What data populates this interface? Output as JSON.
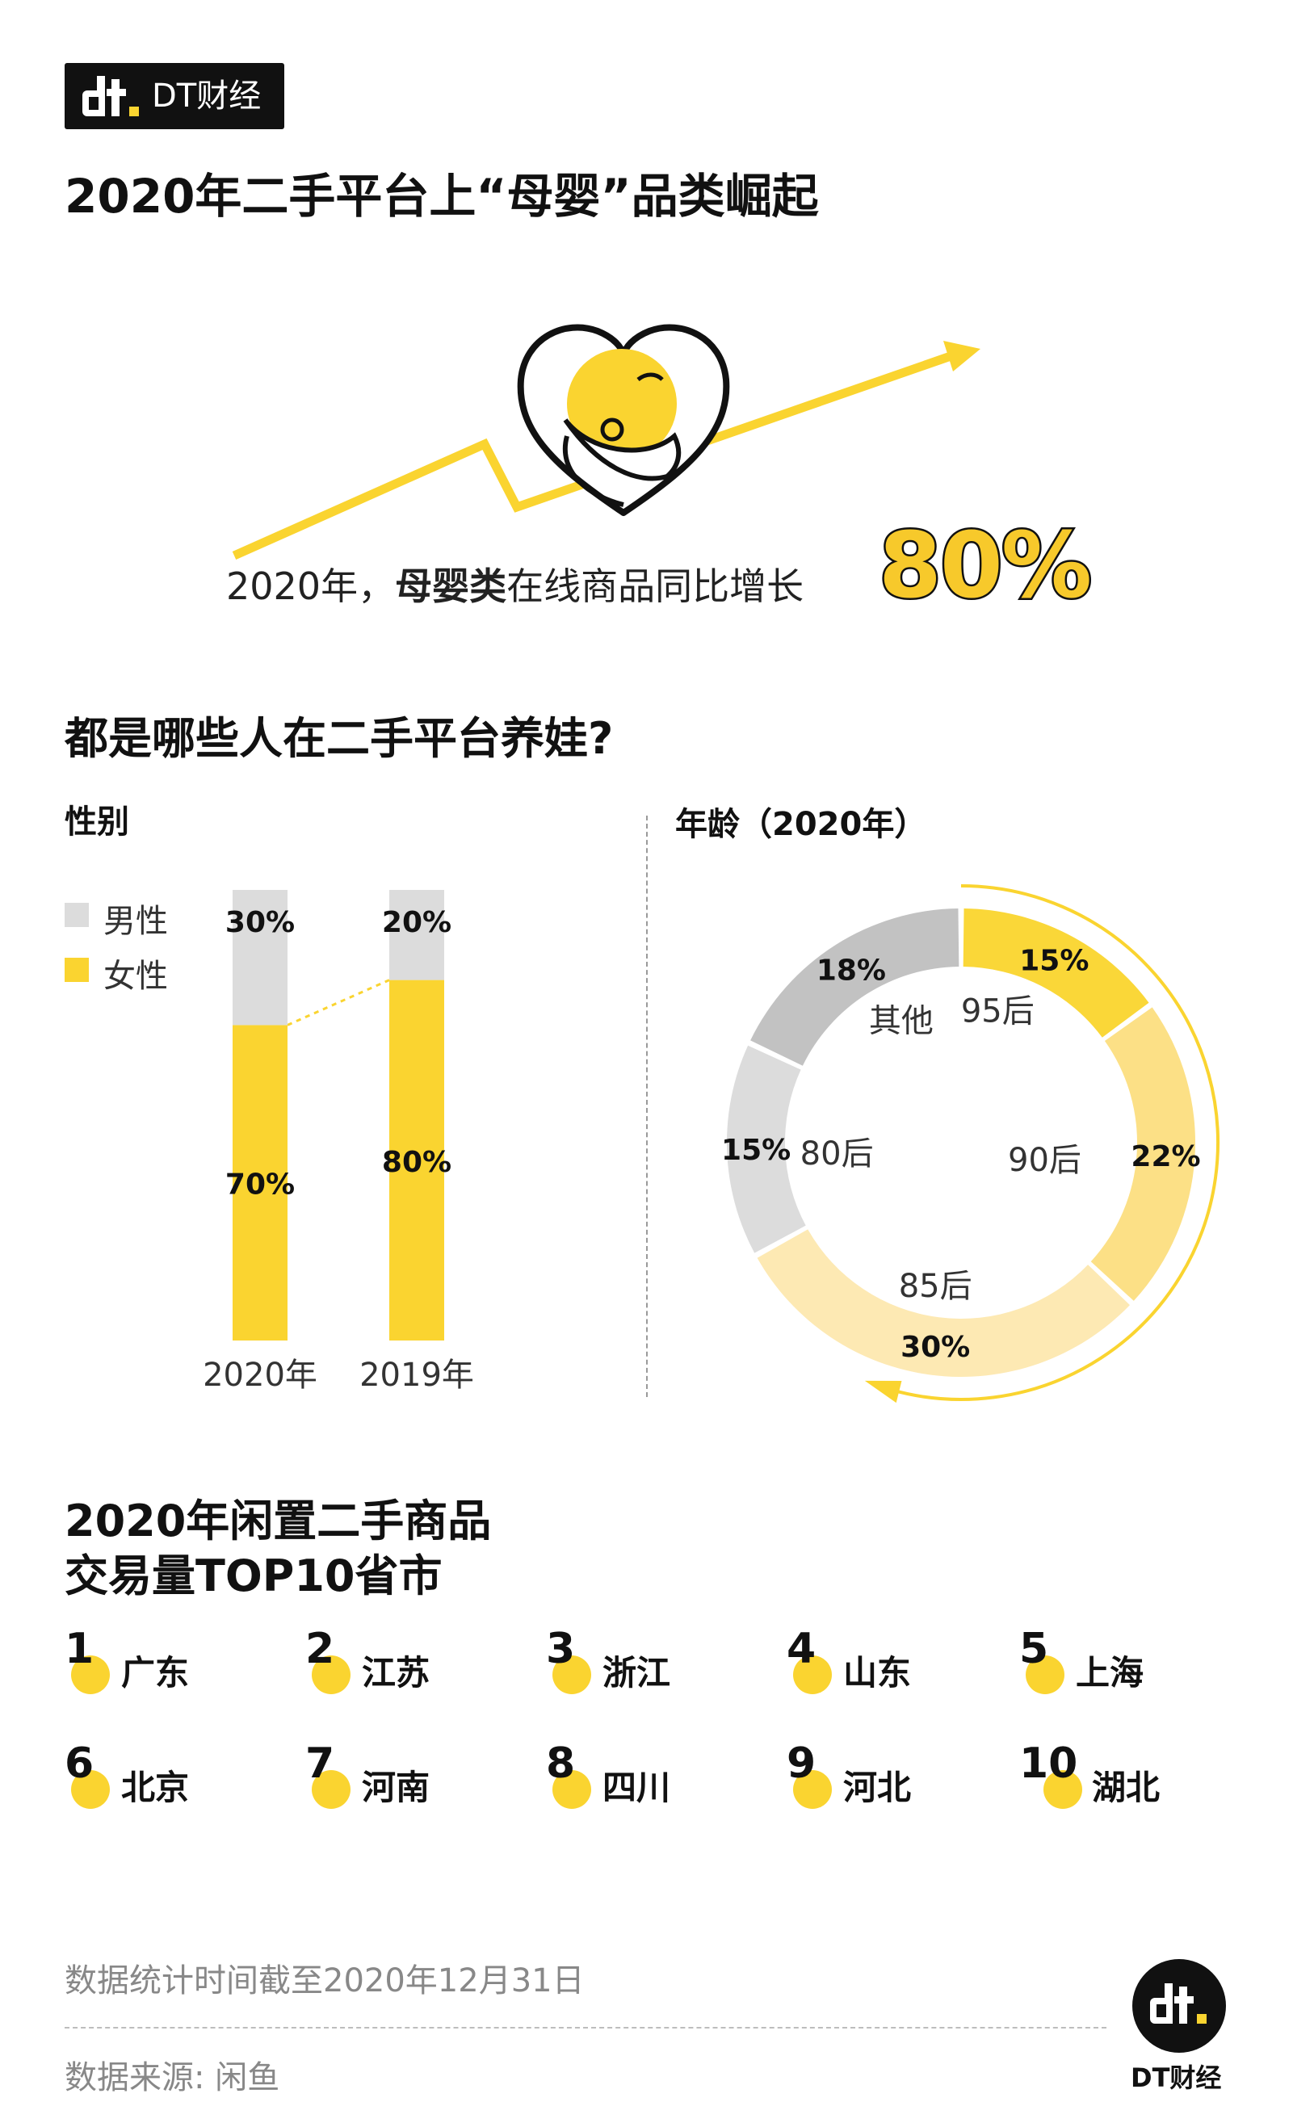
{
  "brand": {
    "name": "DT财经"
  },
  "title": "2020年二手平台上“母婴”品类崛起",
  "hero": {
    "caption_prefix": "2020年，",
    "caption_bold": "母婴类",
    "caption_suffix": "在线商品同比增长",
    "growth": "80%"
  },
  "section_title": "都是哪些人在二手平台养娃?",
  "colors": {
    "accent": "#fad430",
    "male_gray": "#dcdcdc",
    "age_95": "#fad738",
    "age_90": "#fce086",
    "age_85": "#fde9b3",
    "age_80": "#dcdcdc",
    "age_other": "#c2c2c2"
  },
  "gender": {
    "title": "性别",
    "legend": [
      {
        "label": "男性",
        "color": "#dcdcdc"
      },
      {
        "label": "女性",
        "color": "#fad430"
      }
    ]
  },
  "age": {
    "title": "年龄（2020年）"
  },
  "chart_data": [
    {
      "type": "bar",
      "stacked": true,
      "title": "性别",
      "categories": [
        "2020年",
        "2019年"
      ],
      "series": [
        {
          "name": "女性",
          "values": [
            70,
            80
          ],
          "labels": [
            "70%",
            "80%"
          ],
          "color": "#fad430"
        },
        {
          "name": "男性",
          "values": [
            30,
            20
          ],
          "labels": [
            "30%",
            "20%"
          ],
          "color": "#dcdcdc"
        }
      ],
      "ylim": [
        0,
        100
      ]
    },
    {
      "type": "pie",
      "donut": true,
      "title": "年龄（2020年）",
      "slices": [
        {
          "label": "95后",
          "value": 15,
          "pct_label": "15%",
          "color": "#fad738"
        },
        {
          "label": "90后",
          "value": 22,
          "pct_label": "22%",
          "color": "#fce086"
        },
        {
          "label": "85后",
          "value": 30,
          "pct_label": "30%",
          "color": "#fde9b3"
        },
        {
          "label": "80后",
          "value": 15,
          "pct_label": "15%",
          "color": "#dcdcdc"
        },
        {
          "label": "其他",
          "value": 18,
          "pct_label": "18%",
          "color": "#c2c2c2"
        }
      ]
    }
  ],
  "ranking": {
    "title_line1": "2020年闲置二手商品",
    "title_line2": "交易量TOP10省市",
    "items": [
      {
        "rank": "1",
        "name": "广东"
      },
      {
        "rank": "2",
        "name": "江苏"
      },
      {
        "rank": "3",
        "name": "浙江"
      },
      {
        "rank": "4",
        "name": "山东"
      },
      {
        "rank": "5",
        "name": "上海"
      },
      {
        "rank": "6",
        "name": "北京"
      },
      {
        "rank": "7",
        "name": "河南"
      },
      {
        "rank": "8",
        "name": "四川"
      },
      {
        "rank": "9",
        "name": "河北"
      },
      {
        "rank": "10",
        "name": "湖北"
      }
    ]
  },
  "footer": {
    "note": "数据统计时间截至2020年12月31日",
    "source": "数据来源: 闲鱼",
    "brand": "DT财经"
  }
}
